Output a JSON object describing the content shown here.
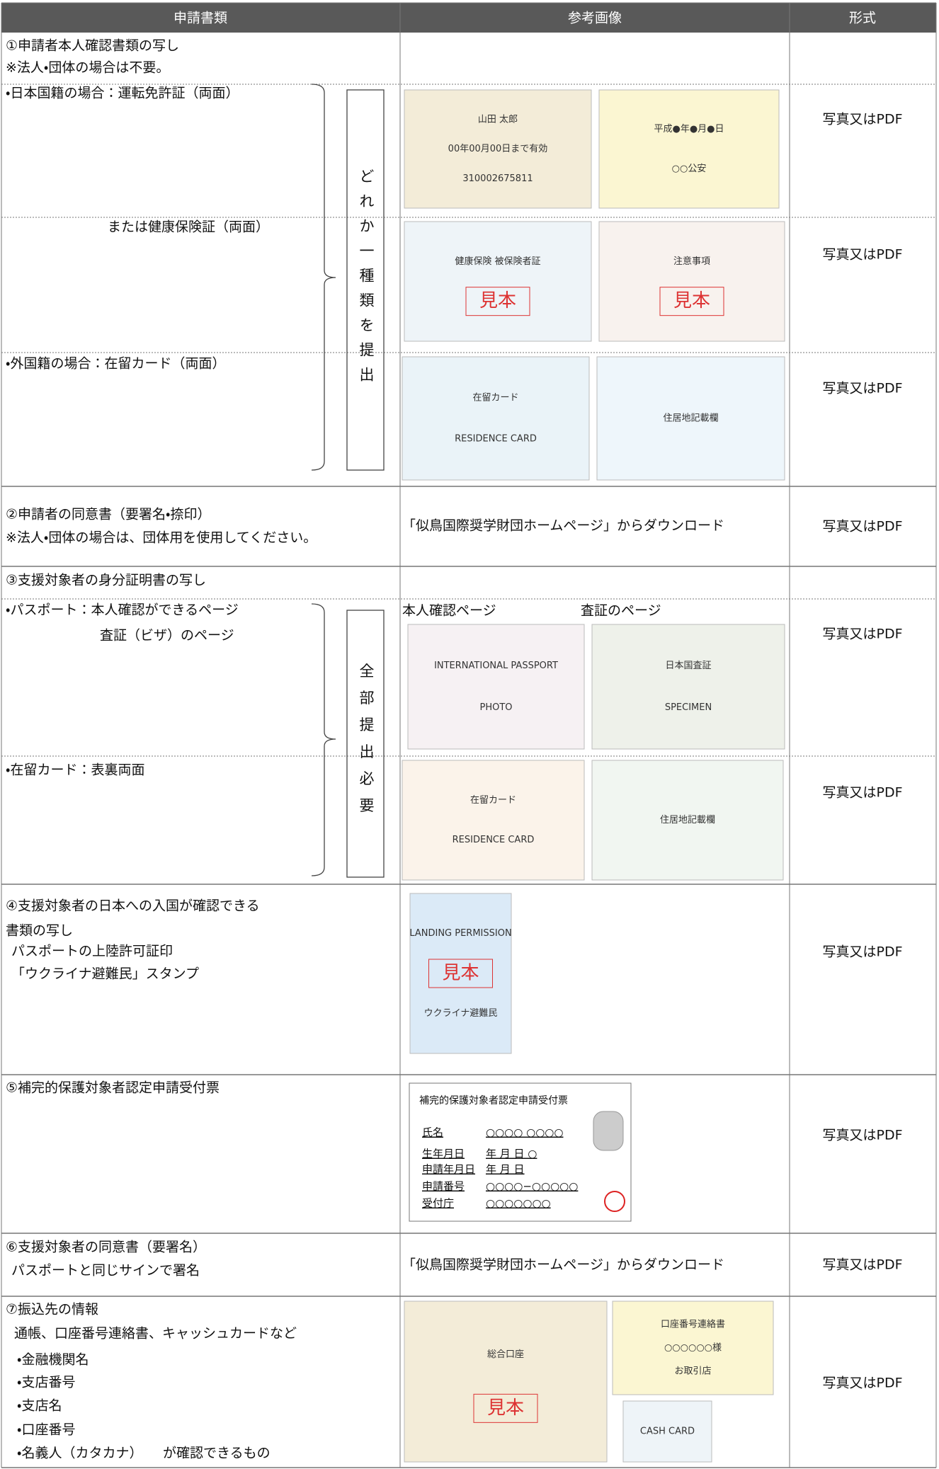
{
  "table": {
    "headers": [
      "申請書類",
      "参考画像",
      "形式"
    ],
    "rows": [
      {
        "lines": [
          "①申請者本人確認書類の写し",
          "※法人・団体の場合は不要。"
        ]
      },
      {
        "lines": [
          "・日本国籍の場合：運転免許証（両面）"
        ],
        "format": "写真又はPDF",
        "samples": [
          {
            "texts": [
              "山田 太郎",
              "00年00月00日まで有効",
              "310002675811"
            ]
          },
          {
            "texts": [
              "平成●年●月●日",
              "○○公安"
            ]
          }
        ]
      },
      {
        "lines": [
          "または健康保険証（両面）"
        ],
        "format": "写真又はPDF",
        "samples": [
          {
            "texts": [
              "健康保険 被保険者証",
              "見本"
            ]
          },
          {
            "texts": [
              "注意事項",
              "見本"
            ]
          }
        ]
      },
      {
        "lines": [
          "・外国籍の場合：在留カード（両面）"
        ],
        "format": "写真又はPDF",
        "samples": [
          {
            "texts": [
              "在留カード",
              "RESIDENCE CARD"
            ]
          },
          {
            "texts": [
              "住居地記載欄"
            ]
          }
        ]
      },
      {
        "lines": [
          "②申請者の同意書（要署名・捺印）",
          "※法人・団体の場合は、団体用を使用してください。"
        ],
        "reference": "「似鳥国際奨学財団ホームページ」からダウンロード",
        "format": "写真又はPDF"
      },
      {
        "lines": [
          "③支援対象者の身分証明書の写し"
        ]
      },
      {
        "lines": [
          "・パスポート：本人確認ができるページ",
          "査証（ビザ）のページ"
        ],
        "captions": [
          "本人確認ページ",
          "査証のページ"
        ],
        "format": "写真又はPDF",
        "samples": [
          {
            "texts": [
              "INTERNATIONAL PASSPORT",
              "PHOTO"
            ]
          },
          {
            "texts": [
              "日本国査証",
              "SPECIMEN"
            ]
          }
        ]
      },
      {
        "lines": [
          "・在留カード：表裏両面"
        ],
        "format": "写真又はPDF",
        "samples": [
          {
            "texts": [
              "在留カード",
              "RESIDENCE CARD"
            ]
          },
          {
            "texts": [
              "住居地記載欄"
            ]
          }
        ]
      },
      {
        "lines": [
          "④支援対象者の日本への入国が確認できる",
          "書類の写し",
          "パスポートの上陸許可証印",
          "「ウクライナ避難民」スタンプ"
        ],
        "format": "写真又はPDF",
        "samples": [
          {
            "texts": [
              "LANDING PERMISSION",
              "見本",
              "ウクライナ避難民"
            ]
          }
        ]
      },
      {
        "lines": [
          "⑤補完的保護対象者認定申請受付票"
        ],
        "format": "写真又はPDF",
        "receipt": {
          "title": "補完的保護対象者認定申請受付票",
          "fields": [
            [
              "氏名",
              "○○○○ ○○○○"
            ],
            [
              "生年月日",
              "年 月 日 ○"
            ],
            [
              "申請年月日",
              "年 月 日"
            ],
            [
              "申請番号",
              "○○○○−○○○○○"
            ],
            [
              "受付庁",
              "○○○○○○○"
            ]
          ]
        }
      },
      {
        "lines": [
          "⑥支援対象者の同意書（要署名）",
          "パスポートと同じサインで署名"
        ],
        "reference": "「似鳥国際奨学財団ホームページ」からダウンロード",
        "format": "写真又はPDF"
      },
      {
        "lines": [
          "⑦振込先の情報",
          "通帳、口座番号連絡書、キャッシュカードなど",
          "・金融機関名",
          "・支店番号",
          "・支店名",
          "・口座番号",
          "・名義人（カタカナ）　　が確認できるもの"
        ],
        "format": "写真又はPDF",
        "samples": [
          {
            "texts": [
              "総合口座",
              "見本"
            ]
          },
          {
            "texts": [
              "口座番号連絡書",
              "○○○○○○様",
              "お取引店"
            ]
          },
          {
            "texts": [
              "CASH CARD"
            ]
          }
        ]
      }
    ],
    "brackets": [
      {
        "label": "どれか一種類を提出"
      },
      {
        "label": "全部提出必要"
      }
    ]
  }
}
